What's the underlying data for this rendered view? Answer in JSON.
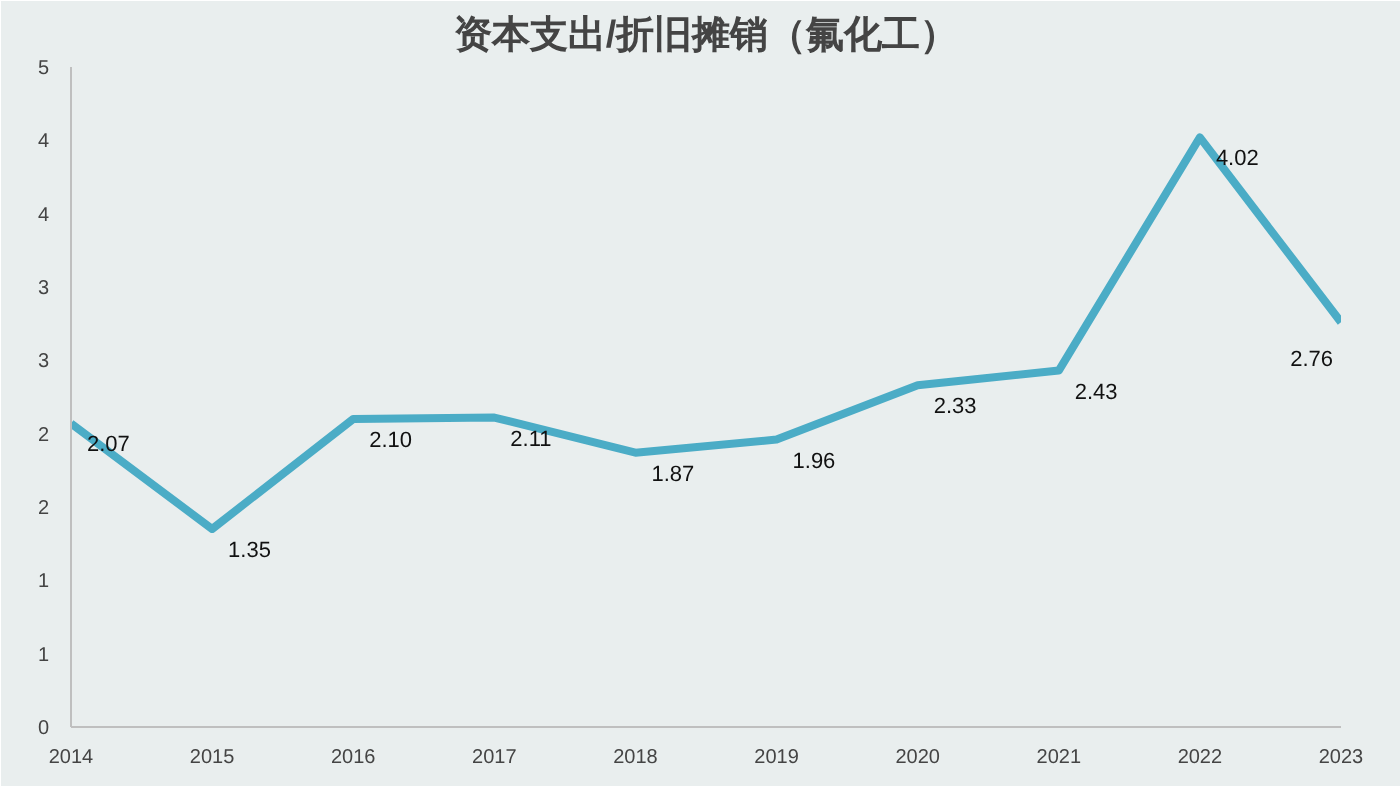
{
  "chart_data": {
    "type": "line",
    "title": "资本支出/折旧摊销（氟化工）",
    "x": [
      2014,
      2015,
      2016,
      2017,
      2018,
      2019,
      2020,
      2021,
      2022,
      2023
    ],
    "series": [
      {
        "color": "#4bacc6",
        "values": [
          2.07,
          1.35,
          2.1,
          2.11,
          1.87,
          1.96,
          2.33,
          2.43,
          4.02,
          2.76
        ]
      }
    ],
    "xlim": [
      2014,
      2023
    ],
    "xticks": [
      2014,
      2015,
      2016,
      2017,
      2018,
      2019,
      2020,
      2021,
      2022,
      2023
    ],
    "ylim": [
      0,
      4.5
    ],
    "yticks": [
      0,
      {
        "value": 0.5,
        "label": "1"
      },
      1,
      {
        "value": 1.5,
        "label": "2"
      },
      2,
      {
        "value": 2.5,
        "label": "3"
      },
      3,
      {
        "value": 3.5,
        "label": "4"
      },
      4,
      {
        "value": 4.5,
        "label": "5"
      }
    ],
    "value_labels": [
      "2.07",
      "1.35",
      "2.10",
      "2.11",
      "1.87",
      "1.96",
      "2.33",
      "2.43",
      "4.02",
      "2.76"
    ],
    "grid": false,
    "marker": "none",
    "line_style": "solid"
  }
}
